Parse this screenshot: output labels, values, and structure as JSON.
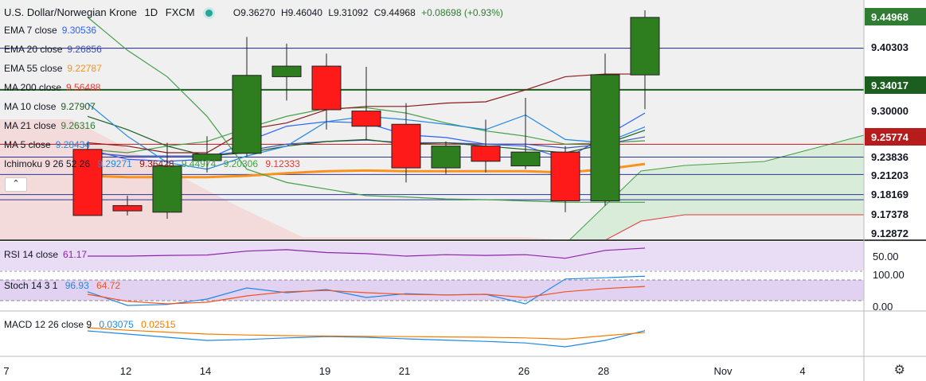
{
  "header": {
    "symbol": "U.S. Dollar/Norwegian Krone",
    "interval": "1D",
    "exchange": "FXCM",
    "open": "O9.36270",
    "high": "H9.46040",
    "low": "L9.31092",
    "close": "C9.44968",
    "change": "+0.08698 (+0.93%)"
  },
  "legends": {
    "ema7": {
      "label": "EMA 7 close",
      "value": "9.30536",
      "color": "#2962ff"
    },
    "ema20": {
      "label": "EMA 20 close",
      "value": "9.26856",
      "color": "#3f51b5"
    },
    "ema55": {
      "label": "EMA 55 close",
      "value": "9.22787",
      "color": "#f7931e"
    },
    "ma200": {
      "label": "MA 200 close",
      "value": "9.56488",
      "color": "#e53935"
    },
    "ma10": {
      "label": "MA 10 close",
      "value": "9.27907",
      "color": "#1b5e20"
    },
    "ma21": {
      "label": "MA 21 close",
      "value": "9.26316",
      "color": "#2e7d32"
    },
    "ma5": {
      "label": "MA 5 close",
      "value": "9.28434",
      "color": "#1e88e5"
    },
    "ichimoku": {
      "label": "Ichimoku 9 26 52 26",
      "values": [
        "9.29271",
        "9.36428",
        "9.44974",
        "9.20306",
        "9.12333"
      ],
      "colors": [
        "#1e88e5",
        "#8b1a1a",
        "#43a047",
        "#43a047",
        "#e53935"
      ]
    },
    "rsi": {
      "label": "RSI 14 close",
      "value": "61.17",
      "color": "#8e24aa"
    },
    "stoch": {
      "label": "Stoch 14 3 1",
      "values": [
        "96.93",
        "64.72"
      ],
      "colors": [
        "#1e88e5",
        "#f4511e"
      ]
    },
    "macd": {
      "label": "MACD 12 26 close 9",
      "values": [
        "0.03075",
        "0.02515"
      ],
      "colors": [
        "#1e88e5",
        "#f57c00"
      ]
    }
  },
  "collapse_icon": "chevron-up-icon",
  "settings_icon": "gear-icon",
  "chart_data": {
    "type": "candlestick",
    "x_tick_labels": [
      "7",
      "12",
      "14",
      "19",
      "21",
      "26",
      "28",
      "Nov",
      "4"
    ],
    "price_axis_labels": [
      {
        "text": "9.44968",
        "tag": "last-price",
        "color": "#2e7d32"
      },
      {
        "text": "9.40303",
        "tag": "line"
      },
      {
        "text": "9.34017",
        "tag": "line-tag",
        "color": "#1b5e20"
      },
      {
        "text": "9.30000"
      },
      {
        "text": "9.25774",
        "tag": "line-tag",
        "color": "#b71c1c"
      },
      {
        "text": "9.23836"
      },
      {
        "text": "9.21203"
      },
      {
        "text": "9.18169"
      },
      {
        "text": "9.17378"
      },
      {
        "text": "9.12872"
      }
    ],
    "rsi_axis_labels": [
      "50.00"
    ],
    "stoch_axis_labels": [
      "100.00",
      "0.00"
    ],
    "macd_axis_labels": [],
    "horizontal_lines": [
      9.40303,
      9.34017,
      9.25774,
      9.23836,
      9.21203,
      9.18169,
      9.17378
    ],
    "candles": [
      {
        "o": 9.25,
        "h": 9.26,
        "l": 9.15,
        "c": 9.15
      },
      {
        "o": 9.165,
        "h": 9.18,
        "l": 9.15,
        "c": 9.157
      },
      {
        "o": 9.155,
        "h": 9.26,
        "l": 9.145,
        "c": 9.225
      },
      {
        "o": 9.233,
        "h": 9.27,
        "l": 9.215,
        "c": 9.243
      },
      {
        "o": 9.244,
        "h": 9.42,
        "l": 9.24,
        "c": 9.362
      },
      {
        "o": 9.36,
        "h": 9.41,
        "l": 9.324,
        "c": 9.376
      },
      {
        "o": 9.376,
        "h": 9.395,
        "l": 9.28,
        "c": 9.31
      },
      {
        "o": 9.308,
        "h": 9.375,
        "l": 9.264,
        "c": 9.285
      },
      {
        "o": 9.288,
        "h": 9.32,
        "l": 9.2,
        "c": 9.222
      },
      {
        "o": 9.222,
        "h": 9.262,
        "l": 9.213,
        "c": 9.255
      },
      {
        "o": 9.255,
        "h": 9.295,
        "l": 9.215,
        "c": 9.232
      },
      {
        "o": 9.225,
        "h": 9.328,
        "l": 9.22,
        "c": 9.246
      },
      {
        "o": 9.246,
        "h": 9.255,
        "l": 9.155,
        "c": 9.172
      },
      {
        "o": 9.172,
        "h": 9.395,
        "l": 9.165,
        "c": 9.363
      },
      {
        "o": 9.3627,
        "h": 9.4604,
        "l": 9.31092,
        "c": 9.44968
      }
    ],
    "ma_lines": [
      {
        "name": "EMA 7",
        "color": "#2962ff",
        "values": [
          9.25,
          9.235,
          9.232,
          9.235,
          9.262,
          9.285,
          9.292,
          9.29,
          9.272,
          9.268,
          9.258,
          9.255,
          9.235,
          9.27,
          9.305
        ]
      },
      {
        "name": "EMA 20",
        "color": "#3f51b5",
        "values": [
          9.245,
          9.24,
          9.24,
          9.24,
          9.248,
          9.258,
          9.262,
          9.264,
          9.26,
          9.26,
          9.258,
          9.258,
          9.252,
          9.258,
          9.269
        ]
      },
      {
        "name": "EMA 55",
        "color": "#f7931e",
        "values": [
          9.21,
          9.208,
          9.208,
          9.208,
          9.21,
          9.214,
          9.217,
          9.218,
          9.217,
          9.217,
          9.217,
          9.217,
          9.215,
          9.22,
          9.228
        ]
      },
      {
        "name": "MA 10",
        "color": "#1b5e20",
        "values": [
          9.3,
          9.28,
          9.255,
          9.24,
          9.245,
          9.255,
          9.262,
          9.265,
          9.258,
          9.26,
          9.255,
          9.25,
          9.245,
          9.258,
          9.279
        ]
      },
      {
        "name": "MA 21",
        "color": "#43a047",
        "values": [
          9.25,
          9.245,
          9.255,
          9.262,
          9.282,
          9.3,
          9.312,
          9.313,
          9.305,
          9.29,
          9.278,
          9.27,
          9.258,
          9.26,
          9.263
        ]
      },
      {
        "name": "MA 5",
        "color": "#1e88e5",
        "values": [
          9.32,
          9.27,
          9.23,
          9.22,
          9.24,
          9.255,
          9.292,
          9.3,
          9.295,
          9.288,
          9.28,
          9.302,
          9.265,
          9.26,
          9.284
        ]
      },
      {
        "name": "Ichimoku conversion",
        "color": "#8b1a1a",
        "values": [
          9.26,
          9.255,
          9.245,
          9.245,
          9.28,
          9.29,
          9.31,
          9.315,
          9.315,
          9.32,
          9.322,
          9.34,
          9.36,
          9.364,
          9.364
        ]
      },
      {
        "name": "Ichimoku lagging",
        "color": "#43a047",
        "values": [
          9.45,
          9.4,
          9.36,
          9.3,
          9.22,
          9.2,
          9.19,
          9.18,
          9.178,
          9.175,
          9.174,
          9.172,
          9.17,
          9.17,
          9.17
        ]
      }
    ],
    "rsi_values": [
      50,
      50,
      51,
      51.5,
      57,
      59,
      55,
      53.5,
      50,
      52,
      51,
      52,
      47,
      58,
      61.17
    ],
    "stoch_k": [
      48,
      5,
      8,
      25,
      60,
      45,
      55,
      30,
      42,
      38,
      40,
      10,
      88,
      92,
      96.93
    ],
    "stoch_d": [
      40,
      18,
      10,
      15,
      35,
      48,
      52,
      45,
      40,
      38,
      40,
      30,
      48,
      58,
      64.72
    ],
    "macd_line": [
      0.03,
      0.02,
      0.01,
      0.0,
      0.003,
      0.008,
      0.012,
      0.01,
      0.005,
      0.001,
      -0.003,
      -0.008,
      -0.02,
      0.0,
      0.03075
    ],
    "signal_line": [
      0.04,
      0.032,
      0.026,
      0.02,
      0.017,
      0.015,
      0.014,
      0.013,
      0.012,
      0.011,
      0.01,
      0.008,
      0.004,
      0.015,
      0.02515
    ]
  }
}
